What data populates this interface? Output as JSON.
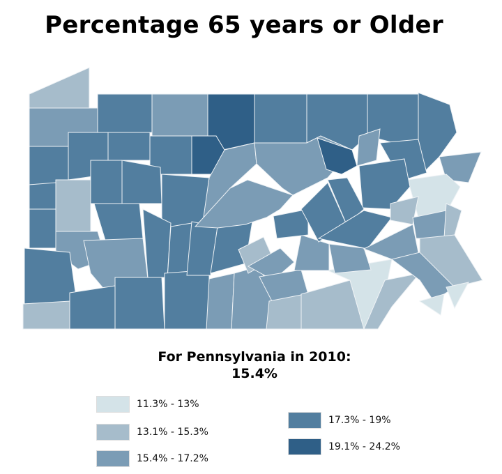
{
  "title": "Percentage 65 years or Older",
  "summary": {
    "line1": "For Pennsylvania in 2010:",
    "line2": "15.4%"
  },
  "legend": [
    {
      "label": "11.3% - 13%",
      "color": "#d4e3e8"
    },
    {
      "label": "13.1% - 15.3%",
      "color": "#a6bccb"
    },
    {
      "label": "15.4% - 17.2%",
      "color": "#7b9cb5"
    },
    {
      "label": "17.3% - 19%",
      "color": "#527e9f"
    },
    {
      "label": "19.1% - 24.2%",
      "color": "#2f5f87"
    }
  ],
  "county_classes": [
    1,
    2,
    3,
    2,
    4,
    3,
    3,
    3,
    3,
    3,
    3,
    3,
    3,
    4,
    2,
    2,
    4,
    2,
    3,
    2,
    0,
    3,
    3,
    1,
    3,
    3,
    3,
    3,
    2,
    3,
    2,
    3,
    1,
    3,
    3,
    3,
    3,
    3,
    3,
    2,
    2,
    3,
    1,
    2,
    2,
    1,
    1,
    0,
    1,
    2,
    2,
    3,
    3,
    3,
    3,
    1,
    2,
    2,
    1,
    1,
    2,
    0,
    0
  ]
}
